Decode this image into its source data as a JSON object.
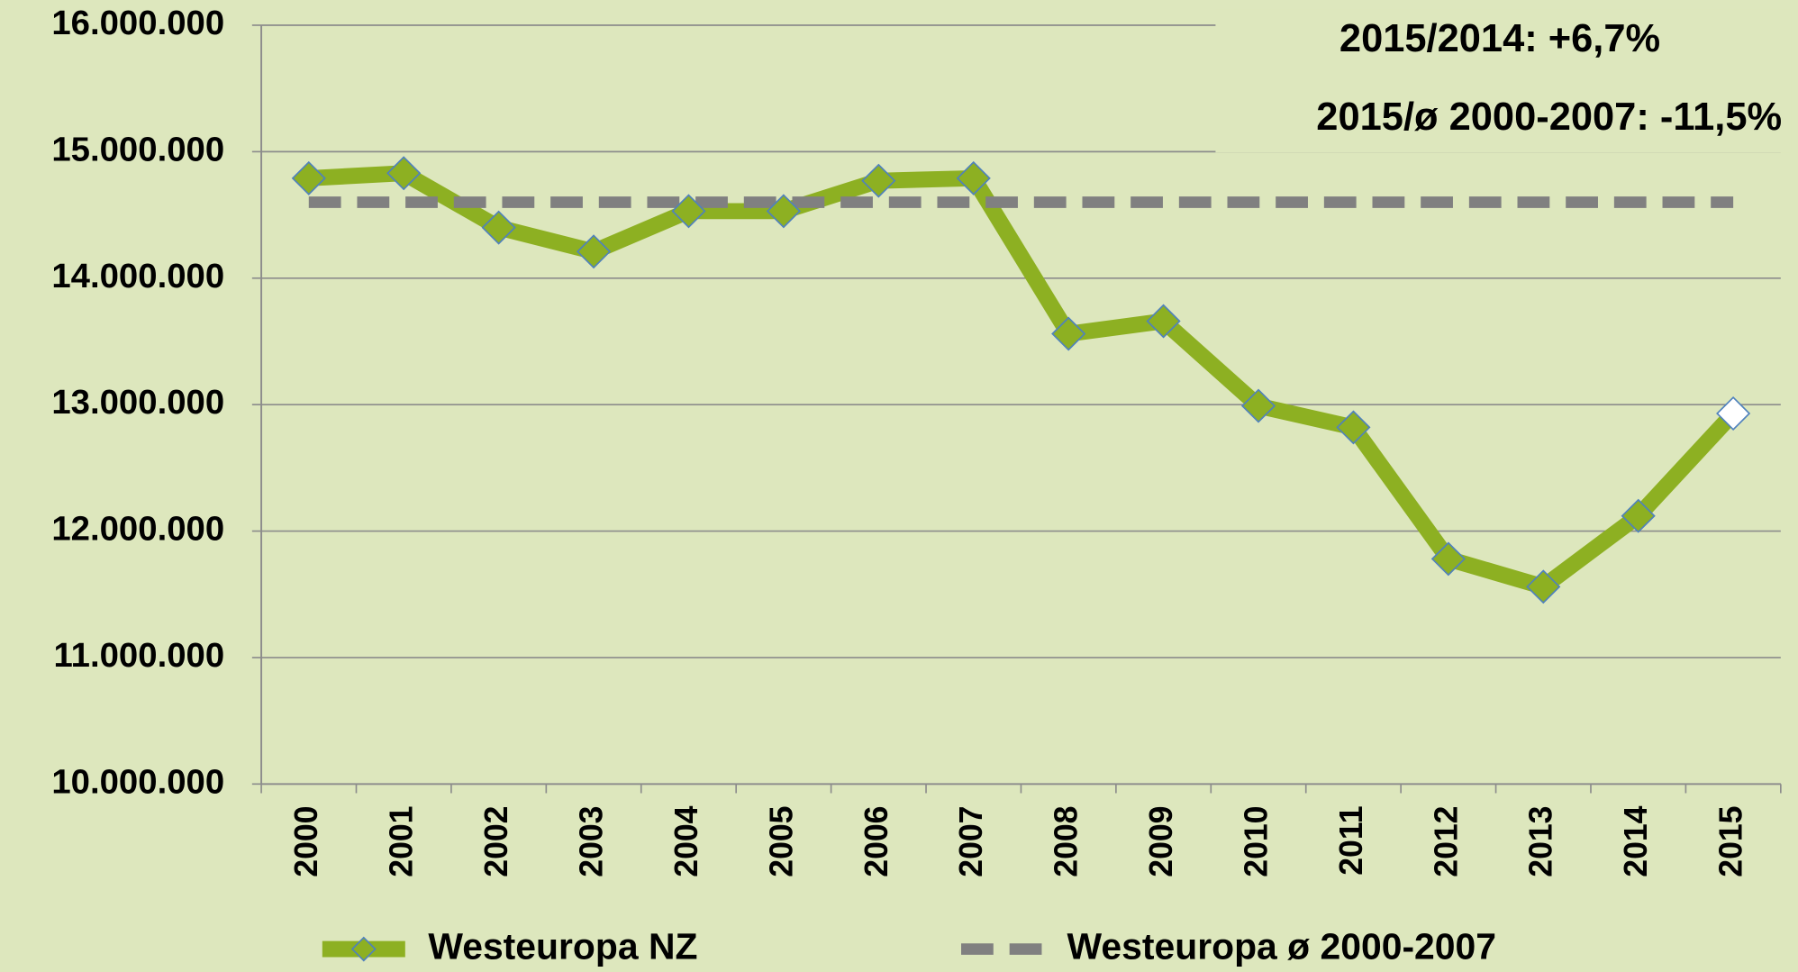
{
  "chart_data": {
    "type": "line",
    "annotations": [
      "2015/2014: +6,7%",
      "2015/ø 2000-2007: -11,5%"
    ],
    "categories": [
      "2000",
      "2001",
      "2002",
      "2003",
      "2004",
      "2005",
      "2006",
      "2007",
      "2008",
      "2009",
      "2010",
      "2011",
      "2012",
      "2013",
      "2014",
      "2015"
    ],
    "series": [
      {
        "name": "Westeuropa NZ",
        "color": "#8db022",
        "marker_color": "#8db022",
        "marker_edge": "#4f81bd",
        "last_marker_color": "#ffffff",
        "values": [
          14790000,
          14830000,
          14400000,
          14210000,
          14530000,
          14530000,
          14770000,
          14790000,
          13560000,
          13660000,
          12990000,
          12820000,
          11780000,
          11560000,
          12120000,
          12930000
        ]
      },
      {
        "name": "Westeuropa ø 2000-2007",
        "color": "#808080",
        "dashed": true,
        "values": [
          14600000,
          14600000,
          14600000,
          14600000,
          14600000,
          14600000,
          14600000,
          14600000,
          14600000,
          14600000,
          14600000,
          14600000,
          14600000,
          14600000,
          14600000,
          14600000
        ]
      }
    ],
    "ylim": [
      10000000,
      16000000
    ],
    "yticks": [
      {
        "value": 10000000,
        "label": "10.000.000"
      },
      {
        "value": 11000000,
        "label": "11.000.000"
      },
      {
        "value": 12000000,
        "label": "12.000.000"
      },
      {
        "value": 13000000,
        "label": "13.000.000"
      },
      {
        "value": 14000000,
        "label": "14.000.000"
      },
      {
        "value": 15000000,
        "label": "15.000.000"
      },
      {
        "value": 16000000,
        "label": "16.000.000"
      }
    ],
    "grid": true,
    "legend": "bottom"
  }
}
